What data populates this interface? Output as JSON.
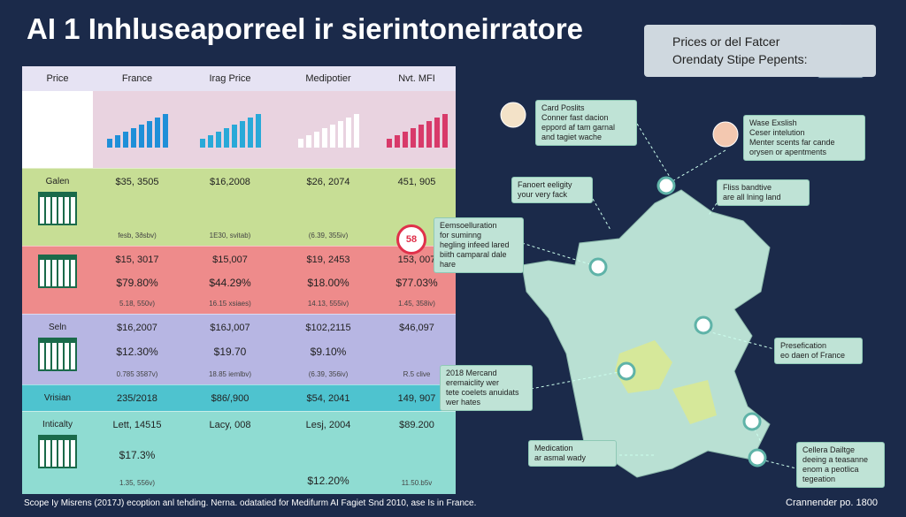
{
  "title": "AI 1 Inhluseaporreel ir sierintoneirratore",
  "legend": {
    "lines": [
      "Prices or del Fatcer",
      "Orendaty Stipe Pepents:"
    ]
  },
  "table": {
    "header": [
      "Price",
      "France",
      "Irag Price",
      "Medipotier",
      "Nvt. MFI"
    ],
    "rows": [
      {
        "label": "Galen",
        "cells": [
          [
            "$35, 3505",
            "fesb, 3ðsbv)"
          ],
          [
            "$16,2008",
            "1E30, svitab)"
          ],
          [
            "$26, 2074",
            "(6.39, 355iv)"
          ],
          [
            "451, 905"
          ]
        ]
      },
      {
        "cells": [
          [
            "$15, 3017",
            "$79.80%",
            "5.18, 550v)"
          ],
          [
            "$15,007",
            "$44.29%",
            "16.15 xsiaes)"
          ],
          [
            "$19, 2453",
            "$18.00%",
            "14.13, 555iv)"
          ],
          [
            "153, 007",
            "$77.03%",
            "1.45, 358iv)"
          ]
        ]
      },
      {
        "label": "Seln",
        "cells": [
          [
            "$16,2007",
            "$12.30%",
            "0.785 3587v)"
          ],
          [
            "$16J,007",
            "$19.70",
            "18.85 iemlbv)"
          ],
          [
            "$102,2115",
            "$9.10%",
            "(6.39, 356iv)"
          ],
          [
            "$46,097",
            "R.5 clive"
          ]
        ]
      },
      {
        "label": "Vrisian",
        "cells": [
          [
            "235/2018"
          ],
          [
            "$86/,900"
          ],
          [
            "$54, 2041"
          ],
          [
            "149, 907"
          ]
        ]
      },
      {
        "label": "Inticalty",
        "cells": [
          [
            "Lett, 14515",
            "$17.3%",
            "1.35, 556v)"
          ],
          [
            "Lacy, 008"
          ],
          [
            "Lesj, 2004",
            "$12.20%"
          ],
          [
            "$89.200",
            "11.50.b5v"
          ]
        ]
      }
    ]
  },
  "callouts": [
    {
      "lines": [
        "Card Poslits",
        "Conner fast dacion",
        "eppord af tam garnal",
        "and tagiet wache"
      ]
    },
    {
      "lines": [
        "Wase Exslish",
        "Ceser intelution",
        "Menter scents far cande",
        "orysen or apentments"
      ]
    },
    {
      "lines": [
        "Fanoert eeligity",
        "your very fack"
      ]
    },
    {
      "lines": [
        "Fliss bandtive",
        "are all lning land"
      ]
    },
    {
      "badge": "58",
      "lines": [
        "Eemsoelluration",
        "for suminng",
        "hegling infeed lared",
        "biith camparal dale",
        "hare"
      ]
    },
    {
      "lines": [
        "Presefication",
        "eo daen of France"
      ]
    },
    {
      "lines": [
        "2018 Mercand",
        "eremaiclity wer",
        "tete coelets anuidats",
        "wer hates"
      ]
    },
    {
      "lines": [
        "Medication",
        "ar asmal wady"
      ]
    },
    {
      "lines": [
        "Cellera Dailtge",
        "deeing a teasanne",
        "enom a peotlica",
        "tegeation"
      ]
    }
  ],
  "footer": "Scope Iy Misrens (2017J) ecoption anl tehding. Nerna. odatatied for Medifurm AI Fagiet Snd 2010, ase Is in France.",
  "credit": "Crannender po. 1800"
}
